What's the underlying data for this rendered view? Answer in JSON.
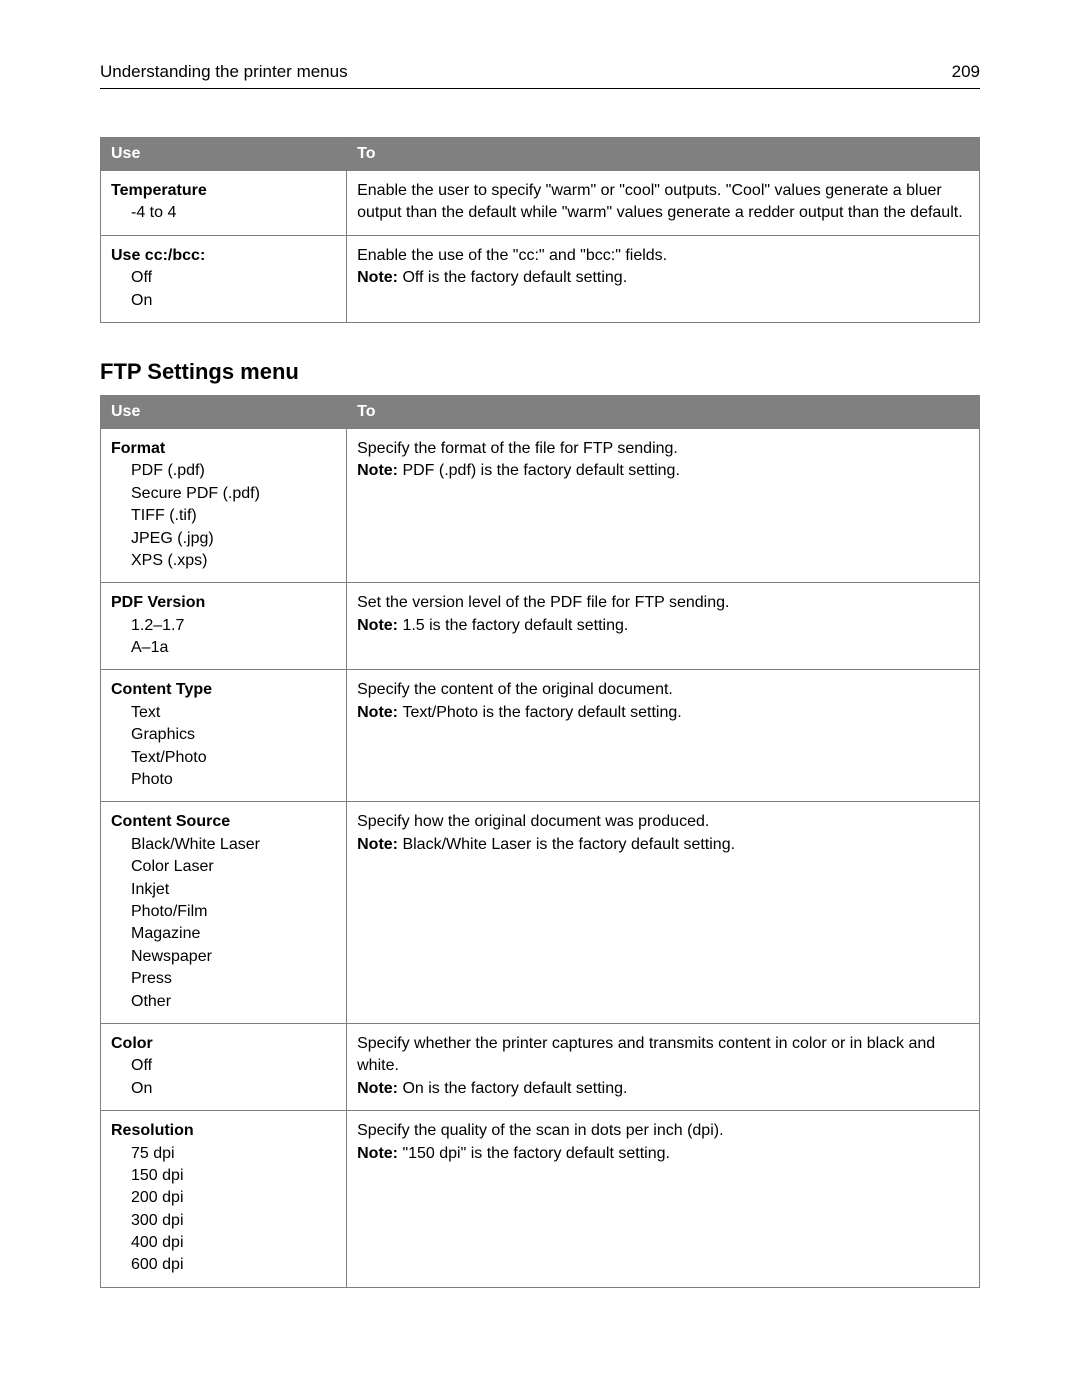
{
  "header": {
    "title": "Understanding the printer menus",
    "page": "209"
  },
  "table1": {
    "columns": {
      "use": "Use",
      "to": "To"
    },
    "rows": [
      {
        "title": "Temperature",
        "options": [
          "-4 to 4"
        ],
        "desc": "Enable the user to specify \"warm\" or \"cool\" outputs. \"Cool\" values generate a bluer output than the default while \"warm\" values generate a redder output than the default.",
        "note_label": "",
        "note": ""
      },
      {
        "title": "Use cc:/bcc:",
        "options": [
          "Off",
          "On"
        ],
        "desc": "Enable the use of the \"cc:\" and \"bcc:\" fields.",
        "note_label": "Note: ",
        "note": "Off is the factory default setting."
      }
    ]
  },
  "section2": {
    "title": "FTP Settings menu"
  },
  "table2": {
    "columns": {
      "use": "Use",
      "to": "To"
    },
    "rows": [
      {
        "title": "Format",
        "options": [
          "PDF (.pdf)",
          "Secure PDF (.pdf)",
          "TIFF (.tif)",
          "JPEG (.jpg)",
          "XPS (.xps)"
        ],
        "desc": "Specify the format of the file for FTP sending.",
        "note_label": "Note: ",
        "note": "PDF (.pdf) is the factory default setting."
      },
      {
        "title": "PDF Version",
        "options": [
          "1.2–1.7",
          "A–1a"
        ],
        "desc": "Set the version level of the PDF file for FTP sending.",
        "note_label": "Note: ",
        "note": "1.5 is the factory default setting."
      },
      {
        "title": "Content Type",
        "options": [
          "Text",
          "Graphics",
          "Text/Photo",
          "Photo"
        ],
        "desc": "Specify the content of the original document.",
        "note_label": "Note: ",
        "note": "Text/Photo is the factory default setting."
      },
      {
        "title": "Content Source",
        "options": [
          "Black/White Laser",
          "Color Laser",
          "Inkjet",
          "Photo/Film",
          "Magazine",
          "Newspaper",
          "Press",
          "Other"
        ],
        "desc": "Specify how the original document was produced.",
        "note_label": "Note: ",
        "note": "Black/White Laser is the factory default setting."
      },
      {
        "title": "Color",
        "options": [
          "Off",
          "On"
        ],
        "desc": "Specify whether the printer captures and transmits content in color or in black and white.",
        "note_label": "Note: ",
        "note": "On is the factory default setting."
      },
      {
        "title": "Resolution",
        "options": [
          "75 dpi",
          "150 dpi",
          "200 dpi",
          "300 dpi",
          "400 dpi",
          "600 dpi"
        ],
        "desc": "Specify the quality of the scan in dots per inch (dpi).",
        "note_label": "Note: ",
        "note": "\"150 dpi\" is the factory default setting."
      }
    ]
  }
}
